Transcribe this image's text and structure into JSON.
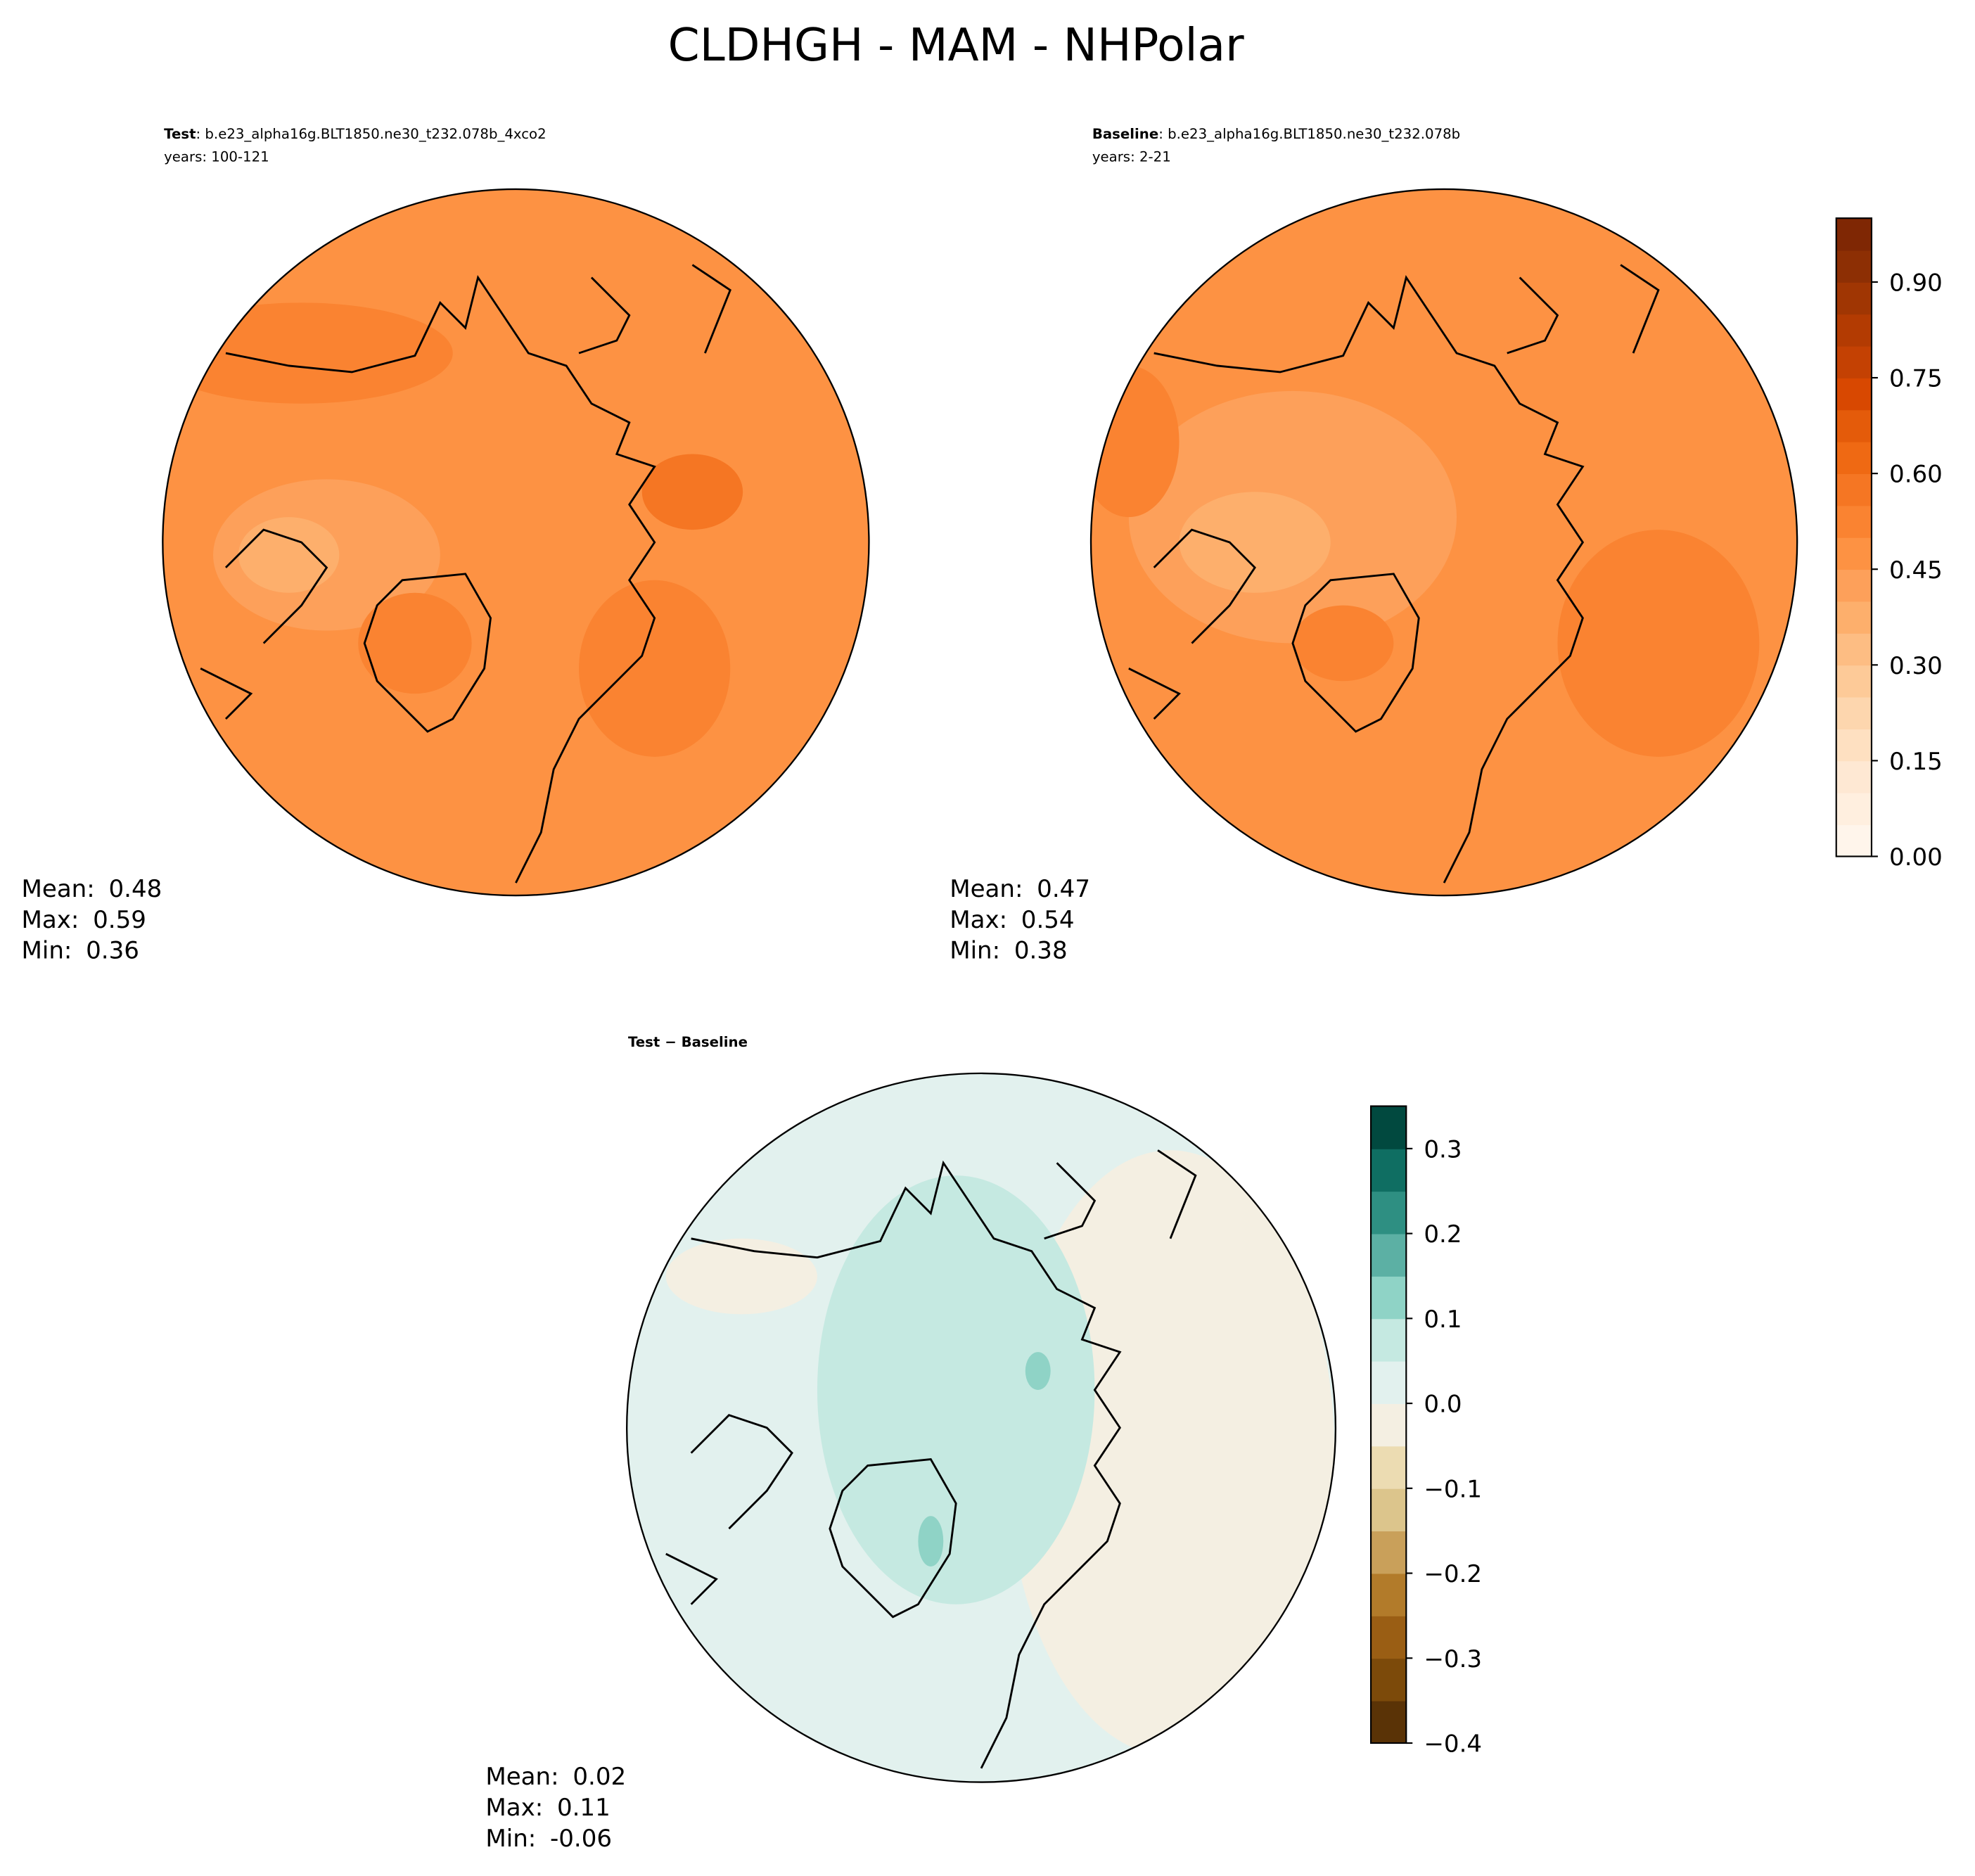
{
  "title": "CLDHGH - MAM - NHPolar",
  "chart_data": [
    {
      "type": "map",
      "title_bold": "Test",
      "title_rest": ": b.e23_alpha16g.BLT1850.ne30_t232.078b_4xco2",
      "subtitle": "years: 100-121",
      "stats": [
        {
          "label": "Mean:",
          "value": 0.48
        },
        {
          "label": "Max:",
          "value": 0.59
        },
        {
          "label": "Min:",
          "value": 0.36
        }
      ]
    },
    {
      "type": "map",
      "title_bold": "Baseline",
      "title_rest": ": b.e23_alpha16g.BLT1850.ne30_t232.078b",
      "subtitle": "years: 2-21",
      "stats": [
        {
          "label": "Mean:",
          "value": 0.47
        },
        {
          "label": "Max:",
          "value": 0.54
        },
        {
          "label": "Min:",
          "value": 0.38
        }
      ],
      "colorbar": {
        "ylim": [
          0,
          1
        ],
        "yticks": [
          {
            "value": 0,
            "label": "0.00"
          },
          {
            "value": 0.15,
            "label": "0.15"
          },
          {
            "value": 0.3,
            "label": "0.30"
          },
          {
            "value": 0.45,
            "label": "0.45"
          },
          {
            "value": 0.6,
            "label": "0.60"
          },
          {
            "value": 0.75,
            "label": "0.75"
          },
          {
            "value": 0.9,
            "label": "0.90"
          }
        ],
        "colors": [
          "#fff5eb",
          "#ffefdf",
          "#fee8d3",
          "#fee0c1",
          "#fdd6ae",
          "#fdca98",
          "#fdbd83",
          "#fdaf6c",
          "#fda05a",
          "#fd9243",
          "#fa8331",
          "#f57623",
          "#ef6913",
          "#e45b0a",
          "#d84801",
          "#c44103",
          "#b33b02",
          "#a03603",
          "#8d2f04",
          "#7f2704"
        ]
      }
    },
    {
      "type": "map",
      "title_bold": "Test − Baseline",
      "stats": [
        {
          "label": "Mean:",
          "value": 0.02
        },
        {
          "label": "Max:",
          "value": 0.11
        },
        {
          "label": "Min:",
          "value": -0.06
        }
      ],
      "colorbar": {
        "ylim": [
          -0.4,
          0.35
        ],
        "yticks": [
          {
            "value": -0.4,
            "label": "−0.4"
          },
          {
            "value": -0.3,
            "label": "−0.3"
          },
          {
            "value": -0.2,
            "label": "−0.2"
          },
          {
            "value": -0.1,
            "label": "−0.1"
          },
          {
            "value": 0,
            "label": "0.0"
          },
          {
            "value": 0.1,
            "label": "0.1"
          },
          {
            "value": 0.2,
            "label": "0.2"
          },
          {
            "value": 0.3,
            "label": "0.3"
          }
        ],
        "colors": [
          "#5a3306",
          "#7c4a0a",
          "#9a5e14",
          "#b27b2a",
          "#c9a05a",
          "#dcc58c",
          "#ecdcb2",
          "#f4efe2",
          "#e2f1ee",
          "#c5e9e1",
          "#8fd3c6",
          "#5cb0a4",
          "#2e8f82",
          "#0f6e62",
          "#01493f"
        ]
      }
    }
  ]
}
